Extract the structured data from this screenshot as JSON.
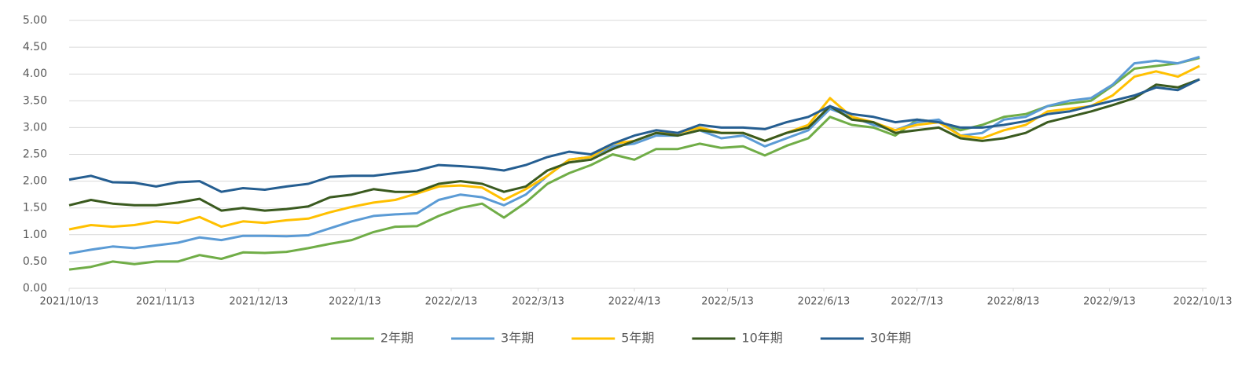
{
  "chart_data": {
    "type": "line",
    "x": [
      "2021/10/13",
      "2021/10/20",
      "2021/10/27",
      "2021/11/03",
      "2021/11/10",
      "2021/11/17",
      "2021/11/24",
      "2021/12/01",
      "2021/12/08",
      "2021/12/15",
      "2021/12/22",
      "2021/12/29",
      "2022/01/05",
      "2022/01/12",
      "2022/01/19",
      "2022/01/26",
      "2022/02/02",
      "2022/02/09",
      "2022/02/16",
      "2022/02/23",
      "2022/03/02",
      "2022/03/09",
      "2022/03/16",
      "2022/03/23",
      "2022/03/30",
      "2022/04/06",
      "2022/04/13",
      "2022/04/20",
      "2022/04/27",
      "2022/05/04",
      "2022/05/11",
      "2022/05/18",
      "2022/05/25",
      "2022/06/01",
      "2022/06/08",
      "2022/06/15",
      "2022/06/22",
      "2022/06/29",
      "2022/07/06",
      "2022/07/13",
      "2022/07/20",
      "2022/07/27",
      "2022/08/03",
      "2022/08/10",
      "2022/08/17",
      "2022/08/24",
      "2022/08/31",
      "2022/09/07",
      "2022/09/14",
      "2022/09/21",
      "2022/09/28",
      "2022/10/05",
      "2022/10/12"
    ],
    "series": [
      {
        "name": "2年期",
        "color": "#70ad47",
        "values": [
          0.35,
          0.4,
          0.5,
          0.45,
          0.5,
          0.5,
          0.62,
          0.55,
          0.67,
          0.66,
          0.68,
          0.75,
          0.83,
          0.9,
          1.05,
          1.15,
          1.16,
          1.35,
          1.5,
          1.58,
          1.32,
          1.6,
          1.95,
          2.15,
          2.3,
          2.5,
          2.4,
          2.6,
          2.6,
          2.7,
          2.62,
          2.65,
          2.48,
          2.66,
          2.8,
          3.2,
          3.05,
          3.0,
          2.85,
          3.15,
          3.1,
          2.95,
          3.05,
          3.2,
          3.25,
          3.4,
          3.45,
          3.5,
          3.78,
          4.1,
          4.15,
          4.2,
          4.3
        ]
      },
      {
        "name": "3年期",
        "color": "#5b9bd5",
        "values": [
          0.65,
          0.72,
          0.78,
          0.75,
          0.8,
          0.85,
          0.95,
          0.9,
          0.98,
          0.98,
          0.97,
          0.99,
          1.12,
          1.25,
          1.35,
          1.38,
          1.4,
          1.65,
          1.75,
          1.7,
          1.55,
          1.75,
          2.1,
          2.4,
          2.45,
          2.65,
          2.7,
          2.85,
          2.85,
          2.95,
          2.8,
          2.85,
          2.65,
          2.8,
          2.95,
          3.35,
          3.2,
          3.05,
          2.95,
          3.1,
          3.15,
          2.85,
          2.9,
          3.15,
          3.2,
          3.4,
          3.5,
          3.55,
          3.8,
          4.2,
          4.25,
          4.2,
          4.32
        ]
      },
      {
        "name": "5年期",
        "color": "#ffc000",
        "values": [
          1.1,
          1.18,
          1.15,
          1.18,
          1.25,
          1.22,
          1.33,
          1.15,
          1.25,
          1.22,
          1.27,
          1.3,
          1.42,
          1.52,
          1.6,
          1.65,
          1.77,
          1.9,
          1.92,
          1.88,
          1.65,
          1.85,
          2.1,
          2.4,
          2.45,
          2.7,
          2.75,
          2.9,
          2.9,
          3.0,
          2.9,
          2.9,
          2.75,
          2.9,
          3.05,
          3.55,
          3.2,
          3.1,
          2.95,
          3.05,
          3.1,
          2.85,
          2.8,
          2.95,
          3.05,
          3.3,
          3.35,
          3.4,
          3.6,
          3.95,
          4.05,
          3.95,
          4.15
        ]
      },
      {
        "name": "10年期",
        "color": "#3a5a1f",
        "values": [
          1.55,
          1.65,
          1.58,
          1.55,
          1.55,
          1.6,
          1.67,
          1.45,
          1.5,
          1.45,
          1.48,
          1.53,
          1.7,
          1.75,
          1.85,
          1.8,
          1.8,
          1.95,
          2.0,
          1.95,
          1.8,
          1.9,
          2.2,
          2.35,
          2.4,
          2.6,
          2.75,
          2.9,
          2.85,
          2.95,
          2.9,
          2.9,
          2.75,
          2.9,
          3.0,
          3.4,
          3.15,
          3.1,
          2.9,
          2.95,
          3.0,
          2.8,
          2.75,
          2.8,
          2.9,
          3.1,
          3.2,
          3.3,
          3.42,
          3.55,
          3.8,
          3.75,
          3.9
        ]
      },
      {
        "name": "30年期",
        "color": "#255e91",
        "values": [
          2.03,
          2.1,
          1.98,
          1.97,
          1.9,
          1.98,
          2.0,
          1.8,
          1.87,
          1.84,
          1.9,
          1.95,
          2.08,
          2.1,
          2.1,
          2.15,
          2.2,
          2.3,
          2.28,
          2.25,
          2.2,
          2.3,
          2.45,
          2.55,
          2.5,
          2.7,
          2.85,
          2.95,
          2.9,
          3.05,
          3.0,
          3.0,
          2.97,
          3.1,
          3.2,
          3.4,
          3.25,
          3.2,
          3.1,
          3.15,
          3.1,
          3.0,
          3.0,
          3.05,
          3.12,
          3.25,
          3.3,
          3.4,
          3.5,
          3.6,
          3.75,
          3.7,
          3.9
        ]
      }
    ],
    "xlim": [
      "2021/10/13",
      "2022/10/13"
    ],
    "xticks": [
      "2021/10/13",
      "2021/11/13",
      "2021/12/13",
      "2022/1/13",
      "2022/2/13",
      "2022/3/13",
      "2022/4/13",
      "2022/5/13",
      "2022/6/13",
      "2022/7/13",
      "2022/8/13",
      "2022/9/13",
      "2022/10/13"
    ],
    "ylim": [
      0,
      5
    ],
    "yticks": [
      {
        "value": 0,
        "label": "0.00"
      },
      {
        "value": 0.5,
        "label": "0.50"
      },
      {
        "value": 1,
        "label": "1.00"
      },
      {
        "value": 1.5,
        "label": "1.50"
      },
      {
        "value": 2,
        "label": "2.00"
      },
      {
        "value": 2.5,
        "label": "2.50"
      },
      {
        "value": 3,
        "label": "3.00"
      },
      {
        "value": 3.5,
        "label": "3.50"
      },
      {
        "value": 4,
        "label": "4.00"
      },
      {
        "value": 4.5,
        "label": "4.50"
      },
      {
        "value": 5,
        "label": "5.00"
      }
    ],
    "grid": true,
    "legend": "bottom"
  }
}
